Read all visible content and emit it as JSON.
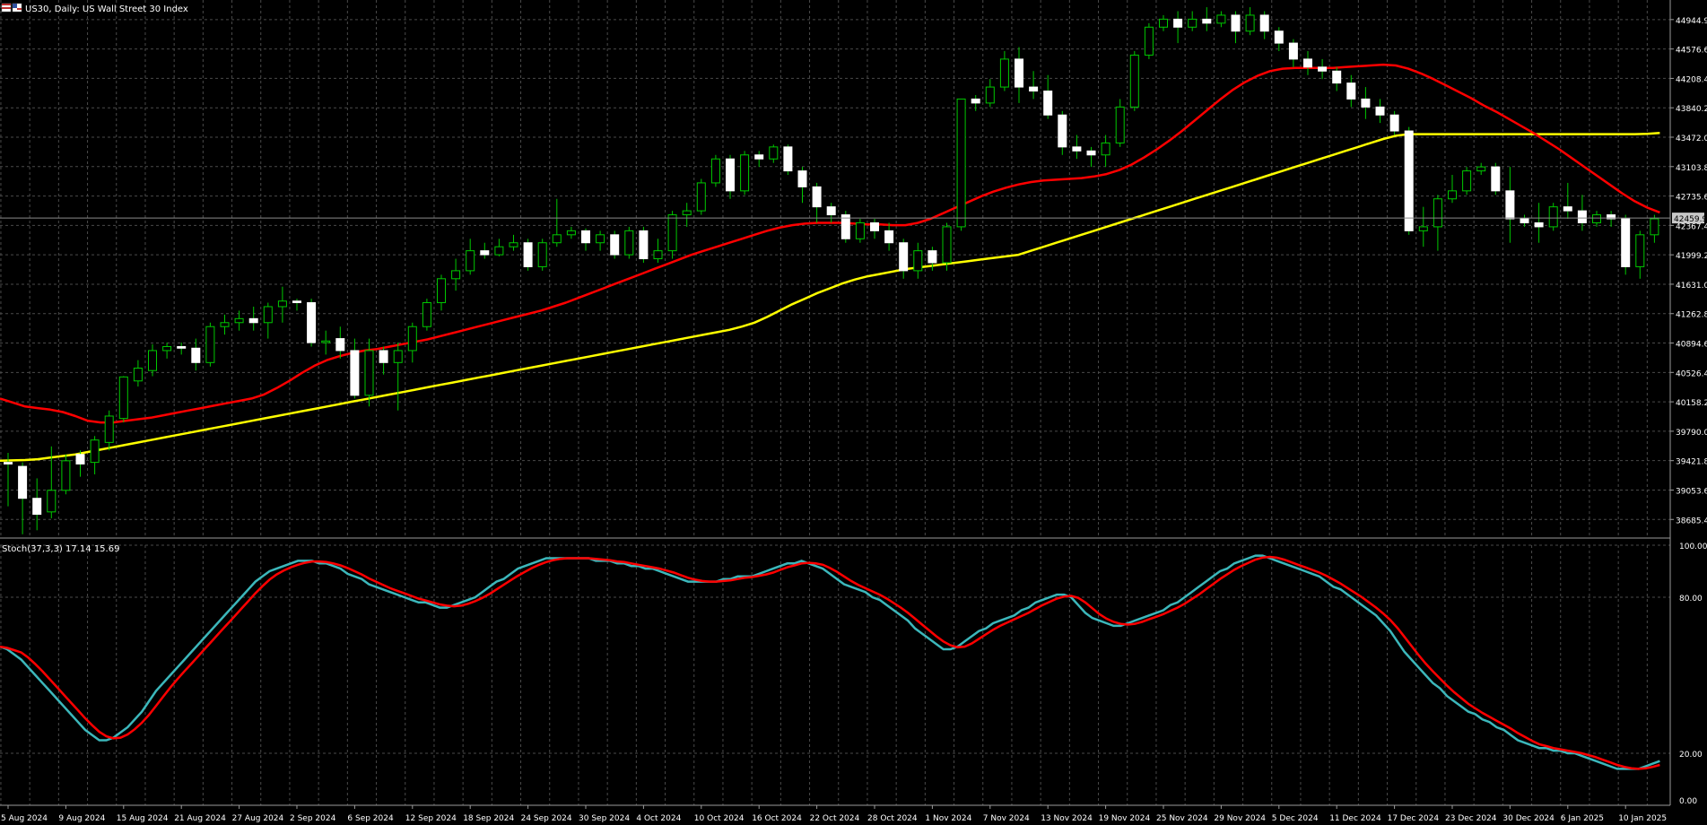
{
  "window": {
    "symbol_caption": "US30, Daily: US Wall Street 30 Index"
  },
  "colors": {
    "background": "#000000",
    "grid": "#4a4a4a",
    "bull_body": "#000000",
    "bull_border": "#00c800",
    "bear_body": "#ffffff",
    "wick": "#00c800",
    "ma_fast": "#ff0000",
    "ma_slow": "#ffff00",
    "stoch_main": "#3cb7bb",
    "stoch_signal": "#ff0000",
    "axis_text": "#ffffff",
    "price_tag_bg": "#c8c8c8"
  },
  "chart_data": [
    {
      "type": "candlestick",
      "title": "US30, Daily: US Wall Street 30 Index",
      "price_ticks": [
        "44944.9",
        "44576.6",
        "44208.4",
        "43840.2",
        "43472.0",
        "43103.8",
        "42735.6",
        "42367.4",
        "41999.2",
        "41631.0",
        "41262.8",
        "40894.6",
        "40526.4",
        "40158.2",
        "39790.0",
        "39421.8",
        "39053.6",
        "38685.4"
      ],
      "price_tick_values": [
        44944.9,
        44576.6,
        44208.4,
        43840.2,
        43472.0,
        43103.8,
        42735.6,
        42367.4,
        41999.2,
        41631.0,
        41262.8,
        40894.6,
        40526.4,
        40158.2,
        39790.0,
        39421.8,
        39053.6,
        38685.4
      ],
      "ylim": [
        38475,
        45190
      ],
      "current_price": "42459.9",
      "current_price_value": 42460,
      "grid": true,
      "x_labels": [
        "5 Aug 2024",
        "9 Aug 2024",
        "15 Aug 2024",
        "21 Aug 2024",
        "27 Aug 2024",
        "2 Sep 2024",
        "6 Sep 2024",
        "12 Sep 2024",
        "18 Sep 2024",
        "24 Sep 2024",
        "30 Sep 2024",
        "4 Oct 2024",
        "10 Oct 2024",
        "16 Oct 2024",
        "22 Oct 2024",
        "28 Oct 2024",
        "1 Nov 2024",
        "7 Nov 2024",
        "13 Nov 2024",
        "19 Nov 2024",
        "25 Nov 2024",
        "29 Nov 2024",
        "5 Dec 2024",
        "11 Dec 2024",
        "17 Dec 2024",
        "23 Dec 2024",
        "30 Dec 2024",
        "6 Jan 2025",
        "10 Jan 2025"
      ],
      "x_label_bar_index": [
        0,
        4,
        8,
        12,
        16,
        20,
        24,
        28,
        32,
        36,
        40,
        44,
        48,
        52,
        56,
        60,
        64,
        68,
        72,
        76,
        80,
        84,
        88,
        92,
        96,
        100,
        104,
        108,
        112
      ],
      "candles": [
        [
          39400,
          39380,
          38850,
          39520
        ],
        [
          39350,
          38950,
          38500,
          39400
        ],
        [
          38950,
          38750,
          38550,
          39200
        ],
        [
          38780,
          39050,
          38700,
          39600
        ],
        [
          39050,
          39420,
          39000,
          39500
        ],
        [
          39500,
          39380,
          39220,
          39550
        ],
        [
          39400,
          39680,
          39250,
          39730
        ],
        [
          39650,
          39980,
          39550,
          40050
        ],
        [
          39950,
          40470,
          39900,
          40480
        ],
        [
          40420,
          40580,
          40350,
          40680
        ],
        [
          40550,
          40800,
          40480,
          40880
        ],
        [
          40800,
          40850,
          40700,
          40900
        ],
        [
          40850,
          40830,
          40750,
          40900
        ],
        [
          40830,
          40650,
          40550,
          40950
        ],
        [
          40650,
          41100,
          40600,
          41150
        ],
        [
          41100,
          41150,
          41000,
          41250
        ],
        [
          41150,
          41200,
          41050,
          41300
        ],
        [
          41200,
          41150,
          41050,
          41350
        ],
        [
          41150,
          41350,
          40950,
          41400
        ],
        [
          41350,
          41420,
          41150,
          41600
        ],
        [
          41420,
          41400,
          41300,
          41450
        ],
        [
          41400,
          40900,
          40850,
          41450
        ],
        [
          40900,
          40920,
          40750,
          41050
        ],
        [
          40950,
          40800,
          40700,
          41100
        ],
        [
          40800,
          40240,
          40200,
          40950
        ],
        [
          40240,
          40800,
          40100,
          40950
        ],
        [
          40800,
          40650,
          40500,
          40850
        ],
        [
          40650,
          40800,
          40050,
          40900
        ],
        [
          40800,
          41100,
          40650,
          41150
        ],
        [
          41100,
          41400,
          41050,
          41450
        ],
        [
          41400,
          41700,
          41300,
          41750
        ],
        [
          41700,
          41800,
          41550,
          41950
        ],
        [
          41800,
          42050,
          41750,
          42200
        ],
        [
          42050,
          42000,
          41950,
          42150
        ],
        [
          42000,
          42100,
          41980,
          42200
        ],
        [
          42100,
          42150,
          42050,
          42250
        ],
        [
          42150,
          41850,
          41800,
          42200
        ],
        [
          41850,
          42150,
          41800,
          42200
        ],
        [
          42150,
          42250,
          42100,
          42700
        ],
        [
          42250,
          42300,
          42200,
          42350
        ],
        [
          42300,
          42150,
          42050,
          42330
        ],
        [
          42150,
          42250,
          42050,
          42300
        ],
        [
          42250,
          42000,
          41950,
          42300
        ],
        [
          42000,
          42300,
          41950,
          42350
        ],
        [
          42300,
          41950,
          41900,
          42350
        ],
        [
          41950,
          42050,
          41900,
          42200
        ],
        [
          42050,
          42500,
          41950,
          42550
        ],
        [
          42500,
          42550,
          42350,
          42650
        ],
        [
          42550,
          42900,
          42500,
          42950
        ],
        [
          42900,
          43200,
          42850,
          43250
        ],
        [
          43200,
          42800,
          42700,
          43250
        ],
        [
          42800,
          43250,
          42750,
          43300
        ],
        [
          43250,
          43200,
          43100,
          43300
        ],
        [
          43200,
          43350,
          43150,
          43380
        ],
        [
          43350,
          43050,
          43000,
          43380
        ],
        [
          43050,
          42850,
          42650,
          43100
        ],
        [
          42850,
          42600,
          42400,
          42900
        ],
        [
          42600,
          42500,
          42400,
          42650
        ],
        [
          42500,
          42200,
          42150,
          42550
        ],
        [
          42200,
          42400,
          42150,
          42450
        ],
        [
          42400,
          42300,
          42200,
          42450
        ],
        [
          42300,
          42150,
          42050,
          42400
        ],
        [
          42150,
          41800,
          41700,
          42200
        ],
        [
          41800,
          42050,
          41700,
          42150
        ],
        [
          42050,
          41900,
          41800,
          42100
        ],
        [
          41900,
          42350,
          41800,
          42400
        ],
        [
          42350,
          43950,
          42300,
          43950
        ],
        [
          43950,
          43900,
          43800,
          44000
        ],
        [
          43900,
          44100,
          43850,
          44200
        ],
        [
          44100,
          44450,
          44050,
          44550
        ],
        [
          44450,
          44100,
          43900,
          44600
        ],
        [
          44100,
          44050,
          43950,
          44300
        ],
        [
          44050,
          43750,
          43700,
          44250
        ],
        [
          43750,
          43350,
          43250,
          43800
        ],
        [
          43350,
          43300,
          43200,
          43500
        ],
        [
          43300,
          43250,
          43100,
          43350
        ],
        [
          43250,
          43400,
          43100,
          43500
        ],
        [
          43400,
          43850,
          43350,
          43950
        ],
        [
          43850,
          44500,
          43800,
          44550
        ],
        [
          44500,
          44850,
          44450,
          44900
        ],
        [
          44850,
          44950,
          44800,
          45000
        ],
        [
          44950,
          44850,
          44650,
          45050
        ],
        [
          44850,
          44950,
          44800,
          45050
        ],
        [
          44950,
          44900,
          44800,
          45100
        ],
        [
          44900,
          45000,
          44850,
          45050
        ],
        [
          45000,
          44800,
          44650,
          45050
        ],
        [
          44800,
          45000,
          44750,
          45100
        ],
        [
          45000,
          44800,
          44700,
          45050
        ],
        [
          44800,
          44650,
          44550,
          44850
        ],
        [
          44650,
          44450,
          44350,
          44700
        ],
        [
          44450,
          44350,
          44250,
          44550
        ],
        [
          44350,
          44300,
          44200,
          44450
        ],
        [
          44300,
          44150,
          44050,
          44350
        ],
        [
          44150,
          43950,
          43850,
          44250
        ],
        [
          43950,
          43850,
          43700,
          44100
        ],
        [
          43850,
          43750,
          43650,
          43950
        ],
        [
          43750,
          43550,
          43500,
          43800
        ],
        [
          43550,
          42300,
          42250,
          43600
        ],
        [
          42300,
          42350,
          42100,
          42600
        ],
        [
          42350,
          42700,
          42050,
          42750
        ],
        [
          42700,
          42800,
          42650,
          43000
        ],
        [
          42800,
          43050,
          42750,
          43100
        ],
        [
          43050,
          43100,
          43000,
          43150
        ],
        [
          43100,
          42800,
          42750,
          43150
        ],
        [
          42800,
          42450,
          42150,
          43100
        ],
        [
          42450,
          42400,
          42350,
          42500
        ],
        [
          42400,
          42350,
          42150,
          42650
        ],
        [
          42350,
          42600,
          42300,
          42650
        ],
        [
          42600,
          42550,
          42450,
          42900
        ],
        [
          42550,
          42400,
          42300,
          42750
        ],
        [
          42400,
          42500,
          42350,
          42550
        ],
        [
          42500,
          42450,
          42350,
          42550
        ],
        [
          42450,
          41850,
          41750,
          42500
        ],
        [
          41850,
          42250,
          41700,
          42300
        ],
        [
          42250,
          42450,
          42150,
          42500
        ]
      ],
      "ma_fast": [
        40200,
        40150,
        40100,
        40080,
        40060,
        40030,
        39980,
        39920,
        39900,
        39900,
        39920,
        39940,
        39960,
        39990,
        40020,
        40050,
        40080,
        40110,
        40140,
        40170,
        40200,
        40250,
        40330,
        40420,
        40520,
        40610,
        40680,
        40730,
        40770,
        40800,
        40820,
        40850,
        40880,
        40910,
        40940,
        40980,
        41020,
        41060,
        41100,
        41140,
        41180,
        41220,
        41260,
        41300,
        41350,
        41400,
        41460,
        41520,
        41580,
        41640,
        41700,
        41760,
        41820,
        41880,
        41940,
        42000,
        42050,
        42100,
        42150,
        42200,
        42250,
        42300,
        42340,
        42370,
        42390,
        42400,
        42400,
        42400,
        42390,
        42380,
        42380,
        42370,
        42370,
        42400,
        42450,
        42520,
        42590,
        42660,
        42730,
        42790,
        42840,
        42880,
        42910,
        42930,
        42940,
        42950,
        42960,
        42980,
        43010,
        43060,
        43130,
        43220,
        43320,
        43430,
        43550,
        43680,
        43810,
        43940,
        44060,
        44160,
        44240,
        44300,
        44330,
        44340,
        44340,
        44340,
        44340,
        44350,
        44360,
        44370,
        44380,
        44370,
        44330,
        44270,
        44200,
        44120,
        44040,
        43960,
        43870,
        43790,
        43700,
        43610,
        43520,
        43420,
        43320,
        43210,
        43100,
        42990,
        42880,
        42770,
        42670,
        42590,
        42530
      ],
      "ma_slow": [
        39420,
        39425,
        39430,
        39440,
        39460,
        39480,
        39500,
        39530,
        39560,
        39590,
        39620,
        39650,
        39680,
        39710,
        39740,
        39770,
        39800,
        39830,
        39860,
        39890,
        39920,
        39950,
        39980,
        40010,
        40040,
        40070,
        40100,
        40130,
        40160,
        40190,
        40220,
        40250,
        40280,
        40310,
        40340,
        40370,
        40400,
        40430,
        40460,
        40490,
        40520,
        40550,
        40580,
        40610,
        40640,
        40670,
        40700,
        40730,
        40760,
        40790,
        40820,
        40850,
        40880,
        40910,
        40940,
        40970,
        41000,
        41030,
        41060,
        41100,
        41150,
        41220,
        41300,
        41380,
        41450,
        41520,
        41580,
        41640,
        41690,
        41730,
        41760,
        41790,
        41820,
        41840,
        41860,
        41880,
        41900,
        41920,
        41940,
        41960,
        41980,
        42000,
        42050,
        42100,
        42150,
        42200,
        42250,
        42300,
        42350,
        42400,
        42450,
        42500,
        42550,
        42600,
        42650,
        42700,
        42750,
        42800,
        42850,
        42900,
        42950,
        43000,
        43050,
        43100,
        43150,
        43200,
        43250,
        43300,
        43350,
        43400,
        43450,
        43490,
        43510,
        43510,
        43510,
        43510,
        43510,
        43510,
        43510,
        43510,
        43510,
        43510,
        43510,
        43510,
        43510,
        43510,
        43510,
        43510,
        43510,
        43510,
        43510,
        43515,
        43525
      ]
    },
    {
      "type": "line",
      "title": "Stoch(37,3,3) 17.14 15.69",
      "indicator": "Stoch(37,3,3)",
      "main_value": "17.14",
      "signal_value": "15.69",
      "y_ticks": [
        "100.00",
        "80.00",
        "20.00",
        "0.00"
      ],
      "y_tick_values": [
        100,
        80,
        20,
        0
      ],
      "ylim": [
        0,
        100
      ],
      "grid": true,
      "main": [
        61,
        60,
        58,
        56,
        53,
        50,
        47,
        44,
        41,
        38,
        35,
        32,
        29,
        27,
        25,
        25,
        26,
        28,
        30,
        33,
        36,
        40,
        44,
        47,
        50,
        53,
        56,
        59,
        62,
        65,
        68,
        71,
        74,
        77,
        80,
        83,
        86,
        88,
        90,
        91,
        92,
        93,
        94,
        94,
        94,
        93,
        93,
        92,
        91,
        89,
        88,
        87,
        85,
        84,
        83,
        82,
        81,
        80,
        79,
        78,
        78,
        77,
        76,
        76,
        77,
        78,
        79,
        80,
        82,
        84,
        86,
        87,
        89,
        91,
        92,
        93,
        94,
        95,
        95,
        95,
        95,
        95,
        95,
        95,
        94,
        94,
        94,
        93,
        93,
        92,
        92,
        91,
        91,
        90,
        89,
        88,
        87,
        86,
        86,
        86,
        86,
        86,
        87,
        87,
        88,
        88,
        88,
        89,
        90,
        91,
        92,
        93,
        93,
        94,
        93,
        92,
        91,
        89,
        87,
        85,
        84,
        83,
        82,
        80,
        79,
        77,
        75,
        73,
        71,
        68,
        66,
        64,
        62,
        60,
        60,
        61,
        63,
        65,
        67,
        68,
        70,
        71,
        72,
        73,
        75,
        76,
        78,
        79,
        80,
        81,
        81,
        80,
        77,
        74,
        72,
        71,
        70,
        69,
        69,
        70,
        71,
        72,
        73,
        74,
        75,
        77,
        78,
        80,
        82,
        84,
        86,
        88,
        90,
        91,
        93,
        94,
        95,
        96,
        96,
        95,
        94,
        93,
        92,
        91,
        90,
        89,
        88,
        86,
        84,
        83,
        81,
        79,
        77,
        75,
        73,
        70,
        67,
        63,
        59,
        56,
        53,
        50,
        47,
        45,
        42,
        40,
        38,
        36,
        35,
        33,
        32,
        30,
        29,
        27,
        25,
        24,
        23,
        22,
        22,
        21,
        21,
        20,
        20,
        19,
        18,
        17,
        16,
        15,
        14,
        14,
        14,
        14,
        15,
        16,
        17
      ]
    }
  ]
}
